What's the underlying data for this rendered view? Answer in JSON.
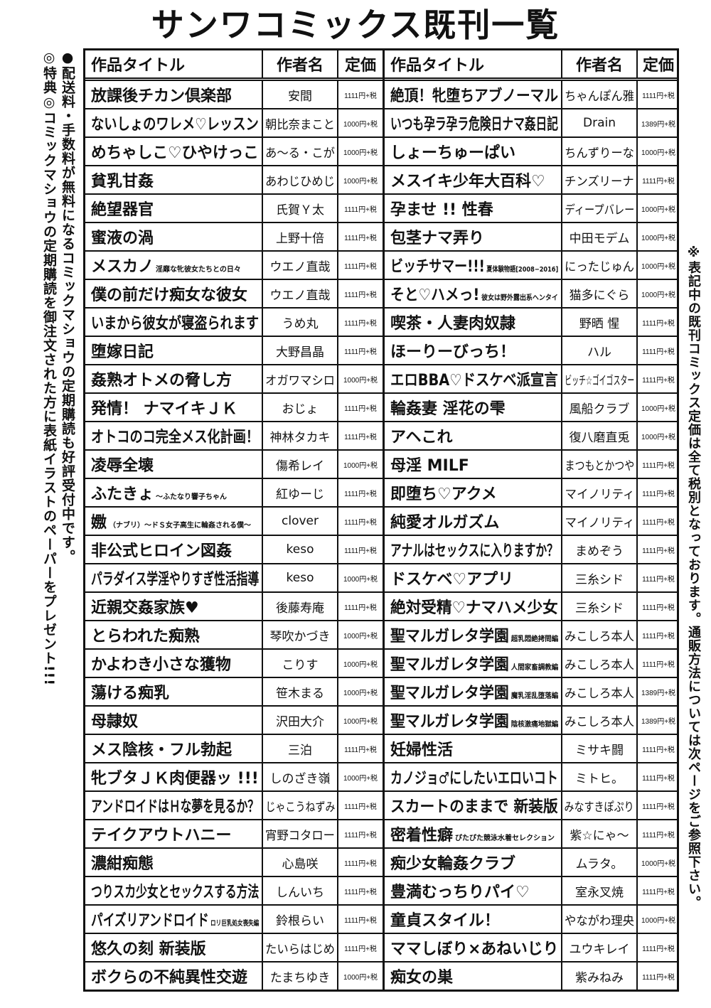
{
  "page_title": "サンワコミックス既刊一覧",
  "left_notes": [
    "●配送料・手数料が無料になるコミックマショウの定期購読も好評受付中です。",
    "◎特典◎コミックマショウの定期購読を御注文された方に表紙イラストのペーパーをプレゼント!!!"
  ],
  "right_note": "※表記中の既刊コミックス定価は全て税別となっております。通販方法については次ページをご参照下さい。",
  "headers": {
    "title": "作品タイトル",
    "author": "作者名",
    "price": "定価"
  },
  "left_rows": [
    {
      "title": "放課後チカン倶楽部",
      "sub": "",
      "author": "安間",
      "price": "1111円+税"
    },
    {
      "title": "ないしょのワレメ♡レッスン",
      "sub": "",
      "author": "朝比奈まこと",
      "price": "1000円+税"
    },
    {
      "title": "めちゃしこ♡ひやけっこ",
      "sub": "",
      "author": "あ〜る・こが",
      "price": "1000円+税"
    },
    {
      "title": "貧乳甘姦",
      "sub": "",
      "author": "あわじひめじ",
      "price": "1000円+税"
    },
    {
      "title": "絶望器官",
      "sub": "",
      "author": "氏賀Ｙ太",
      "price": "1111円+税"
    },
    {
      "title": "蜜液の渦",
      "sub": "",
      "author": "上野十倍",
      "price": "1111円+税"
    },
    {
      "title": "メスカノ",
      "sub": "淫靡な牝彼女たちとの日々",
      "author": "ウエノ直哉",
      "price": "1111円+税"
    },
    {
      "title": "僕の前だけ痴女な彼女",
      "sub": "",
      "author": "ウエノ直哉",
      "price": "1111円+税"
    },
    {
      "title": "いまから彼女が寝盗られます",
      "sub": "",
      "author": "うめ丸",
      "price": "1111円+税"
    },
    {
      "title": "堕嫁日記",
      "sub": "",
      "author": "大野昌晶",
      "price": "1111円+税"
    },
    {
      "title": "姦熟オトメの脅し方",
      "sub": "",
      "author": "オガワマシロ",
      "price": "1000円+税"
    },
    {
      "title": "発情！ ナマイキＪＫ",
      "sub": "",
      "author": "おじょ",
      "price": "1111円+税"
    },
    {
      "title": "オトコのコ完全メス化計画！",
      "sub": "",
      "author": "神林タカキ",
      "price": "1111円+税"
    },
    {
      "title": "凌辱全壊",
      "sub": "",
      "author": "傷希レイ",
      "price": "1000円+税"
    },
    {
      "title": "ふたきょ",
      "sub": "〜ふたなり響子ちゃん",
      "author": "紅ゆーじ",
      "price": "1111円+税"
    },
    {
      "title": "嫐",
      "sub": "（ナブリ）〜ドＳ女子高生に輪姦される僕〜",
      "author": "clover",
      "price": "1111円+税"
    },
    {
      "title": "非公式ヒロイン図姦",
      "sub": "",
      "author": "keso",
      "price": "1111円+税"
    },
    {
      "title": "パラダイス学淫やりすぎ性活指導",
      "sub": "",
      "author": "keso",
      "price": "1000円+税"
    },
    {
      "title": "近親交姦家族♥",
      "sub": "",
      "author": "後藤寿庵",
      "price": "1111円+税"
    },
    {
      "title": "とらわれた痴熟",
      "sub": "",
      "author": "琴吹かづき",
      "price": "1000円+税"
    },
    {
      "title": "かよわき小さな獲物",
      "sub": "",
      "author": "こりす",
      "price": "1000円+税"
    },
    {
      "title": "蕩ける痴乳",
      "sub": "",
      "author": "笹木まる",
      "price": "1000円+税"
    },
    {
      "title": "母隷奴",
      "sub": "",
      "author": "沢田大介",
      "price": "1000円+税"
    },
    {
      "title": "メス陰核・フル勃起",
      "sub": "",
      "author": "三泊",
      "price": "1111円+税"
    },
    {
      "title": "牝ブタＪＫ肉便器ッ !!!",
      "sub": "",
      "author": "しのざき嶺",
      "price": "1000円+税"
    },
    {
      "title": "アンドロイドはＨな夢を見るか？",
      "sub": "",
      "author": "じゃこうねずみ",
      "price": "1111円+税"
    },
    {
      "title": "テイクアウトハニー",
      "sub": "",
      "author": "宵野コタロー",
      "price": "1111円+税"
    },
    {
      "title": "濃紺痴態",
      "sub": "",
      "author": "心島咲",
      "price": "1111円+税"
    },
    {
      "title": "つりスカ少女とセックスする方法",
      "sub": "",
      "author": "しんいち",
      "price": "1111円+税"
    },
    {
      "title": "パイズリアンドロイド",
      "sub": "ロリ巨乳処女喪失編",
      "author": "鈴根らい",
      "price": "1111円+税"
    },
    {
      "title": "悠久の刻 新装版",
      "sub": "",
      "author": "たいらはじめ",
      "price": "1111円+税"
    },
    {
      "title": "ボクらの不純異性交遊",
      "sub": "",
      "author": "たまちゆき",
      "price": "1000円+税"
    }
  ],
  "right_rows": [
    {
      "title": "絶頂！牝堕ちアブノーマル",
      "sub": "",
      "author": "ちゃんぽん雅",
      "price": "1111円+税"
    },
    {
      "title": "いつも孕ラ孕ラ危険日ナマ姦日記",
      "sub": "",
      "author": "Drain",
      "price": "1389円+税"
    },
    {
      "title": "しょーちゅーぱい",
      "sub": "",
      "author": "ちんずりーな",
      "price": "1000円+税"
    },
    {
      "title": "メスイキ少年大百科♡",
      "sub": "",
      "author": "チンズリーナ",
      "price": "1111円+税"
    },
    {
      "title": "孕ませ !! 性春",
      "sub": "",
      "author": "ディープバレー",
      "price": "1000円+税"
    },
    {
      "title": "包茎ナマ弄り",
      "sub": "",
      "author": "中田モデム",
      "price": "1000円+税"
    },
    {
      "title": "ビッチサマー!!!",
      "sub": "夏体験物語[2008−2016]",
      "author": "にったじゅん",
      "price": "1000円+税"
    },
    {
      "title": "そと♡ハメっ!",
      "sub": "彼女は野外露出系ヘンタイ",
      "author": "猫多にぐら",
      "price": "1000円+税"
    },
    {
      "title": "喫茶・人妻肉奴隷",
      "sub": "",
      "author": "野晒 惺",
      "price": "1111円+税"
    },
    {
      "title": "ほーりーびっち！",
      "sub": "",
      "author": "ハル",
      "price": "1111円+税"
    },
    {
      "title": "エロBBA♡ドスケベ派宣言",
      "sub": "",
      "author": "ビッチ☆ゴイゴスター",
      "price": "1111円+税"
    },
    {
      "title": "輪姦妻 淫花の雫",
      "sub": "",
      "author": "風船クラブ",
      "price": "1000円+税"
    },
    {
      "title": "アヘこれ",
      "sub": "",
      "author": "復八磨直兎",
      "price": "1000円+税"
    },
    {
      "title": "母淫 MILF",
      "sub": "",
      "author": "まつもとかつや",
      "price": "1111円+税"
    },
    {
      "title": "即堕ち♡アクメ",
      "sub": "",
      "author": "マイノリティ",
      "price": "1111円+税"
    },
    {
      "title": "純愛オルガズム",
      "sub": "",
      "author": "マイノリティ",
      "price": "1111円+税"
    },
    {
      "title": "アナルはセックスに入りますか？",
      "sub": "",
      "author": "まめぞう",
      "price": "1111円+税"
    },
    {
      "title": "ドスケベ♡アプリ",
      "sub": "",
      "author": "三糸シド",
      "price": "1111円+税"
    },
    {
      "title": "絶対受精♡ナマハメ少女",
      "sub": "",
      "author": "三糸シド",
      "price": "1111円+税"
    },
    {
      "title": "聖マルガレタ学園",
      "sub": "超乳悶絶拷問編",
      "author": "みこしろ本人",
      "price": "1111円+税"
    },
    {
      "title": "聖マルガレタ学園",
      "sub": "人間家畜調教編",
      "author": "みこしろ本人",
      "price": "1111円+税"
    },
    {
      "title": "聖マルガレタ学園",
      "sub": "魔乳淫乱堕落編",
      "author": "みこしろ本人",
      "price": "1389円+税"
    },
    {
      "title": "聖マルガレタ学園",
      "sub": "陰核激痛地獄編",
      "author": "みこしろ本人",
      "price": "1389円+税"
    },
    {
      "title": "妊婦性活",
      "sub": "",
      "author": "ミサキ闘",
      "price": "1111円+税"
    },
    {
      "title": "カノジョ♂にしたいエロいコト",
      "sub": "",
      "author": "ミトヒ。",
      "price": "1111円+税"
    },
    {
      "title": "スカートのままで 新装版",
      "sub": "",
      "author": "みなすきぽぷり",
      "price": "1111円+税"
    },
    {
      "title": "密着性癖",
      "sub": "ぴたぴた競泳水着セレクション",
      "author": "紫☆にゃ〜",
      "price": "1111円+税"
    },
    {
      "title": "痴少女輪姦クラブ",
      "sub": "",
      "author": "ムラタ。",
      "price": "1000円+税"
    },
    {
      "title": "豊満むっちりパイ♡",
      "sub": "",
      "author": "室永叉焼",
      "price": "1111円+税"
    },
    {
      "title": "童貞スタイル！",
      "sub": "",
      "author": "やながわ理央",
      "price": "1000円+税"
    },
    {
      "title": "ママしぼり×あねいじり",
      "sub": "",
      "author": "ユウキレイ",
      "price": "1111円+税"
    },
    {
      "title": "痴女の巣",
      "sub": "",
      "author": "紫みねみ",
      "price": "1111円+税"
    }
  ]
}
